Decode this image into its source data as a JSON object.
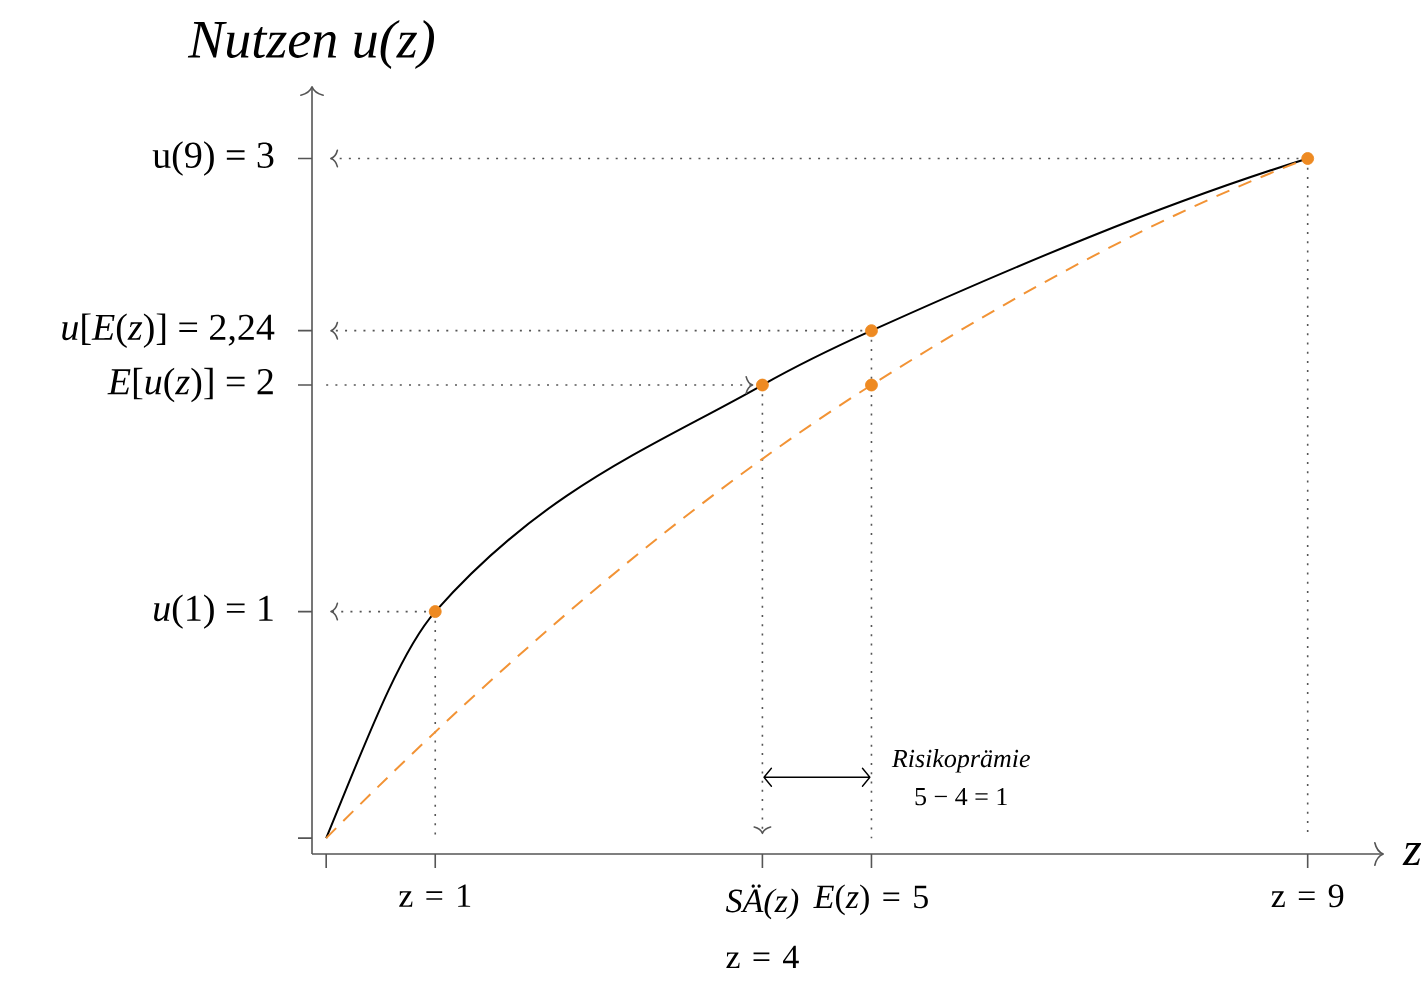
{
  "chart_data": {
    "type": "line",
    "xlabel": "z",
    "ylabel": "Nutzen u(z)",
    "xlim": [
      -0.13,
      9.7
    ],
    "ylim": [
      -0.07,
      3.32
    ],
    "xticks": [
      {
        "value": 0,
        "label": null
      },
      {
        "value": 1,
        "label": "z = 1"
      },
      {
        "value": 4,
        "label": "*SÄ(z)* z = 4"
      },
      {
        "value": 5,
        "label": "*E*(*z*) = 5"
      },
      {
        "value": 9,
        "label": "z = 9"
      }
    ],
    "yticks": [
      {
        "value": 0,
        "label": null
      },
      {
        "value": 1,
        "label": "*u*(1) = 1"
      },
      {
        "value": 2,
        "label": "*E*[*u*(*z*)] = 2"
      },
      {
        "value": 2.24,
        "label": "*u*[*E*(*z*)] = 2,24"
      },
      {
        "value": 3,
        "label": "u(9) = 3"
      }
    ],
    "series": [
      {
        "color": "#000000",
        "x": [
          0,
          1,
          4,
          5,
          9
        ],
        "values": [
          0,
          1,
          2,
          2.24,
          3
        ]
      },
      {
        "color": "#f29335",
        "line_style": "dashed",
        "x": [
          0,
          5,
          9
        ],
        "values": [
          0,
          2,
          3
        ]
      },
      {
        "type": "scatter",
        "color": "#ee8a22",
        "marker": "circle",
        "x": [
          1,
          4,
          5,
          9,
          5
        ],
        "values": [
          1,
          2,
          2.24,
          3,
          2
        ]
      }
    ],
    "ref_lines": [
      {
        "axis": "y",
        "value": 1,
        "color": "#555555",
        "line_style": "dotted"
      },
      {
        "axis": "y",
        "value": 2,
        "color": "#555555",
        "line_style": "dotted"
      },
      {
        "axis": "y",
        "value": 2.24,
        "color": "#555555",
        "line_style": "dotted"
      },
      {
        "axis": "y",
        "value": 3,
        "color": "#555555",
        "line_style": "dotted"
      },
      {
        "axis": "x",
        "value": 1,
        "color": "#555555",
        "line_style": "dotted"
      },
      {
        "axis": "x",
        "value": 4,
        "color": "#555555",
        "line_style": "dotted"
      },
      {
        "axis": "x",
        "value": 5,
        "color": "#555555",
        "line_style": "dotted"
      },
      {
        "axis": "x",
        "value": 9,
        "color": "#555555",
        "line_style": "dotted"
      }
    ],
    "annotations": [
      "Risikoprämie",
      "5 − 4 = 1"
    ]
  }
}
